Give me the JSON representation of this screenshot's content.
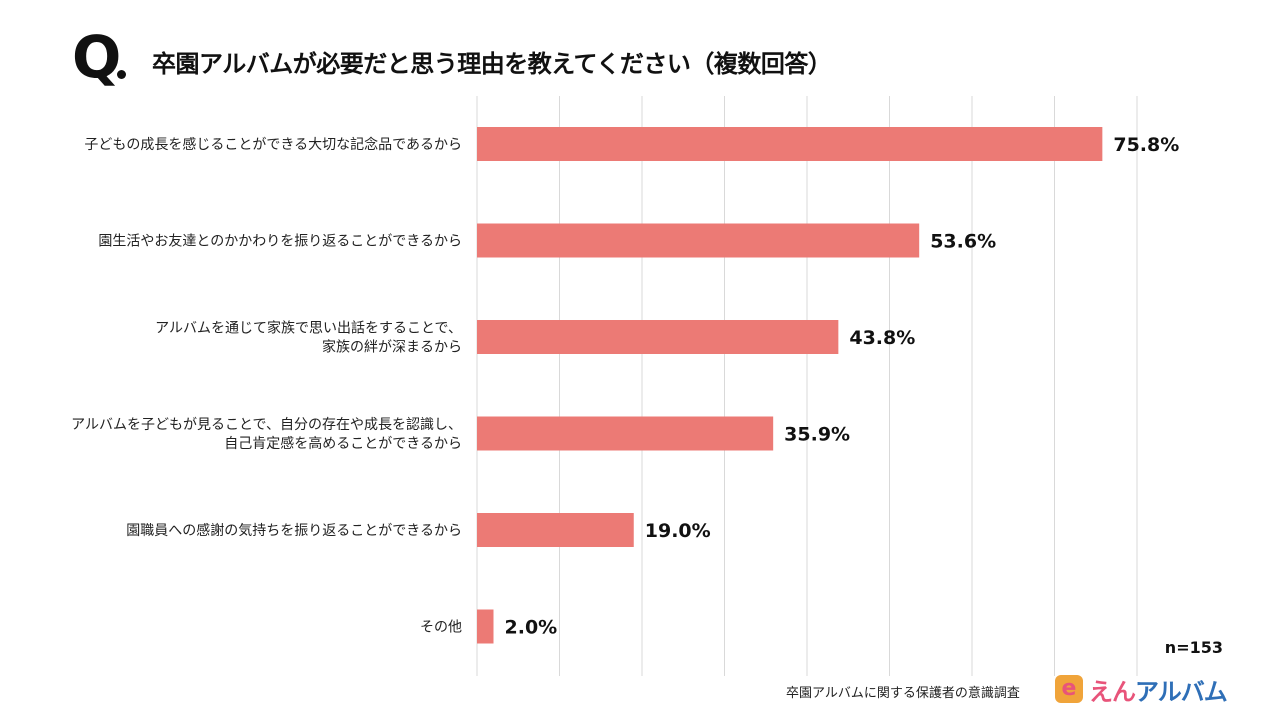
{
  "question_mark": "Q",
  "title": "卒園アルバムが必要だと思う理由を教えてください（複数回答）",
  "note": "n=153",
  "source": "卒園アルバムに関する保護者の意識調査",
  "logo": {
    "hira": "えん",
    "kata": "アルバム",
    "mark": "e"
  },
  "colors": {
    "bar": "#ec7a75",
    "grid": "#d9d9d9"
  },
  "chart_data": {
    "type": "bar",
    "orientation": "horizontal",
    "categories": [
      [
        "子どもの成長を感じることができる大切な記念品であるから"
      ],
      [
        "園生活やお友達とのかかわりを振り返ることができるから"
      ],
      [
        "アルバムを通じて家族で思い出話をすることで、",
        "家族の絆が深まるから"
      ],
      [
        "アルバムを子どもが見ることで、自分の存在や成長を認識し、",
        "自己肯定感を高めることができるから"
      ],
      [
        "園職員への感謝の気持ちを振り返ることができるから"
      ],
      [
        "その他"
      ]
    ],
    "values": [
      75.8,
      53.6,
      43.8,
      35.9,
      19.0,
      2.0
    ],
    "value_labels": [
      "75.8%",
      "53.6%",
      "43.8%",
      "35.9%",
      "19.0%",
      "2.0%"
    ],
    "xlim": [
      0,
      80
    ],
    "grid": true
  }
}
